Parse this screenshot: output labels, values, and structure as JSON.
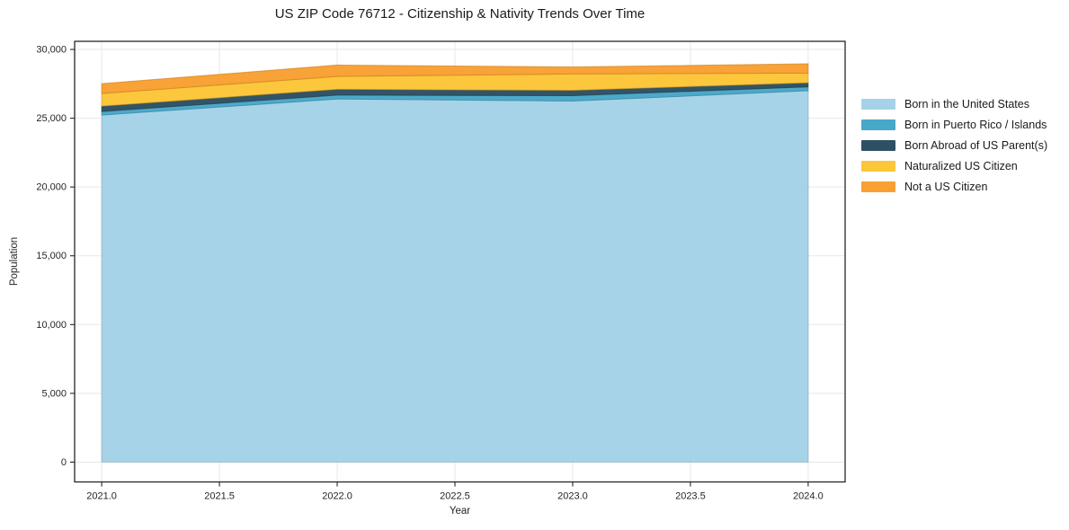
{
  "figure": {
    "title": "US ZIP Code 76712 - Citizenship & Nativity Trends Over Time",
    "xlabel": "Year",
    "ylabel": "Population"
  },
  "chart_data": {
    "type": "area",
    "stacked": true,
    "title": "US ZIP Code 76712 - Citizenship & Nativity Trends Over Time",
    "xlabel": "Year",
    "ylabel": "Population",
    "x": [
      2021,
      2022,
      2023,
      2024
    ],
    "series": [
      {
        "name": "Born in the United States",
        "color": "#a0d0e7",
        "values": [
          25230,
          26400,
          26250,
          27000
        ]
      },
      {
        "name": "Born in Puerto Rico / Islands",
        "color": "#3ea3c5",
        "values": [
          260,
          280,
          390,
          280
        ]
      },
      {
        "name": "Born Abroad of US Parent(s)",
        "color": "#23475b",
        "values": [
          390,
          420,
          390,
          300
        ]
      },
      {
        "name": "Naturalized US Citizen",
        "color": "#fcc32e",
        "values": [
          915,
          935,
          1180,
          700
        ]
      },
      {
        "name": "Not a US Citizen",
        "color": "#f89b28",
        "values": [
          720,
          830,
          520,
          680
        ]
      }
    ],
    "stack_totals": [
      27515,
      28865,
      28730,
      28960
    ],
    "xticks": {
      "values": [
        2021,
        2021.5,
        2022,
        2022.5,
        2023,
        2023.5,
        2024
      ],
      "labels": [
        "2021.0",
        "2021.5",
        "2022.0",
        "2022.5",
        "2023.0",
        "2023.5",
        "2024.0"
      ]
    },
    "yticks": {
      "values": [
        0,
        5000,
        10000,
        15000,
        20000,
        25000,
        30000
      ],
      "labels": [
        "0",
        "5,000",
        "10,000",
        "15,000",
        "20,000",
        "25,000",
        "30,000"
      ]
    },
    "xlim": [
      2020.885,
      2024.157
    ],
    "ylim": [
      -1440,
      30590
    ],
    "grid": true,
    "grid_color": "#e7e7e7",
    "spine_color": "#262626",
    "legend_position": "right"
  }
}
